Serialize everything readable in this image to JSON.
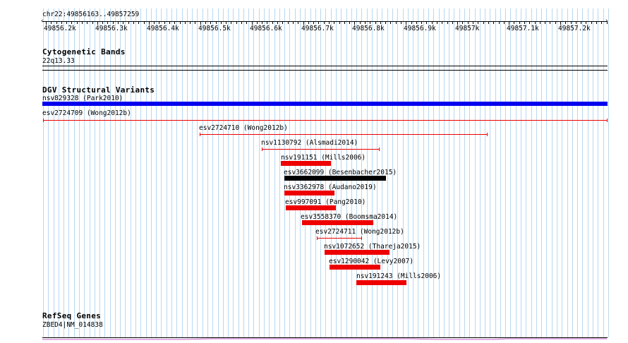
{
  "ruler": {
    "region": "chr22:49856163..49857259",
    "ticks": [
      "49856.2k",
      "49856.3k",
      "49856.4k",
      "49856.5k",
      "49856.6k",
      "49856.7k",
      "49856.8k",
      "49856.9k",
      "49857k",
      "49857.1k",
      "49857.2k"
    ]
  },
  "cytoband": {
    "title": "Cytogenetic Bands",
    "band": "22q13.33"
  },
  "dgv": {
    "title": "DGV Structural Variants",
    "variants": [
      {
        "label": "nsv829328 (Park2010)",
        "color": "#0000ee",
        "style": "thick"
      },
      {
        "label": "esv2724709 (Wong2012b)",
        "color": "#ee0000",
        "style": "thin"
      },
      {
        "label": "esv2724710 (Wong2012b)",
        "color": "#ee0000",
        "style": "thin"
      },
      {
        "label": "nsv1130792 (Alsmadi2014)",
        "color": "#ee0000",
        "style": "thin"
      },
      {
        "label": "nsv191151 (Mills2006)",
        "color": "#ee0000",
        "style": "thick"
      },
      {
        "label": "esv3662099 (Besenbacher2015)",
        "color": "#000000",
        "style": "thick"
      },
      {
        "label": "nsv3362978 (Audano2019)",
        "color": "#ee0000",
        "style": "thick"
      },
      {
        "label": "esv997091 (Pang2010)",
        "color": "#ee0000",
        "style": "thick"
      },
      {
        "label": "esv3558370 (Boomsma2014)",
        "color": "#ee0000",
        "style": "thick"
      },
      {
        "label": "esv2724711 (Wong2012b)",
        "color": "#ee0000",
        "style": "thin"
      },
      {
        "label": "nsv1072652 (Thareja2015)",
        "color": "#ee0000",
        "style": "thick"
      },
      {
        "label": "esv1290042 (Levy2007)",
        "color": "#ee0000",
        "style": "thick"
      },
      {
        "label": "nsv191243 (Mills2006)",
        "color": "#ee0000",
        "style": "thick"
      }
    ]
  },
  "refseq": {
    "title": "RefSeq Genes",
    "gene": "ZBED4|NM_014838",
    "color": "#cc66cc"
  }
}
